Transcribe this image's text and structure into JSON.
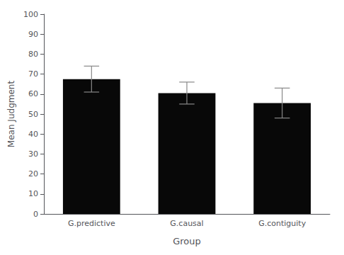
{
  "chart_data": {
    "type": "bar",
    "categories": [
      "G.predictive",
      "G.causal",
      "G.contiguity"
    ],
    "values": [
      67.5,
      60.5,
      55.5
    ],
    "errors": [
      6.5,
      5.5,
      7.5
    ],
    "color": "#080808",
    "xlabel": "Group",
    "ylabel": "Mean Judgment",
    "ylim": [
      0,
      100
    ],
    "yticks": [
      0,
      10,
      20,
      30,
      40,
      50,
      60,
      70,
      80,
      90,
      100
    ],
    "grid": false
  }
}
